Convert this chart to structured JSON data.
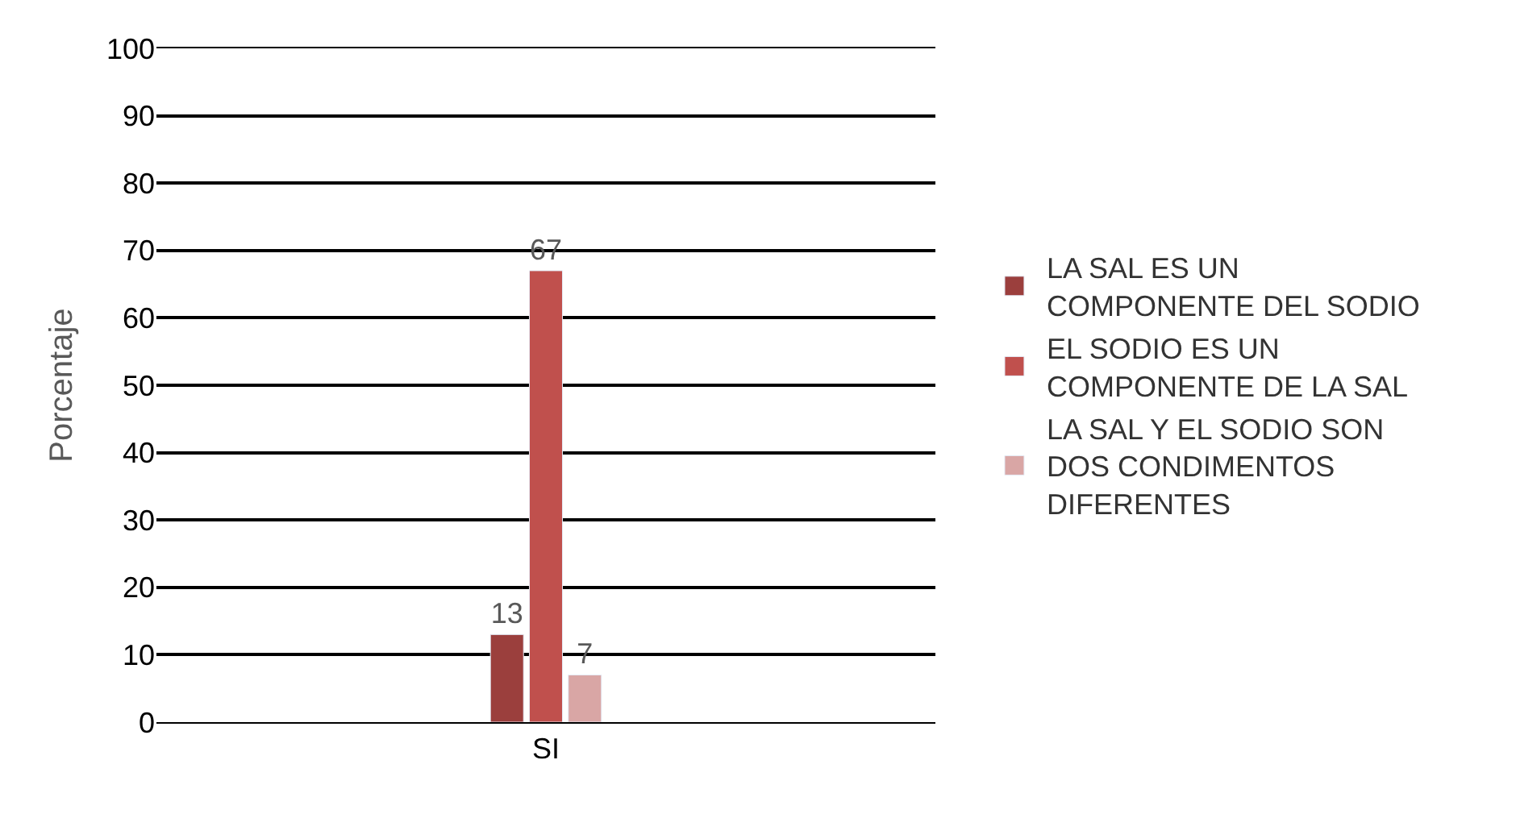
{
  "chart_data": {
    "type": "bar",
    "ylabel": "Porcentaje",
    "categories": [
      null,
      "SI",
      null
    ],
    "series": [
      {
        "name": "LA SAL ES UN COMPONENTE DEL SODIO",
        "color": "#9b3f3d",
        "values": [
          null,
          13,
          null
        ]
      },
      {
        "name": "EL SODIO ES UN COMPONENTE DE LA SAL",
        "color": "#c0504d",
        "values": [
          null,
          67,
          null
        ]
      },
      {
        "name": "LA SAL Y EL SODIO SON DOS CONDIMENTOS DIFERENTES",
        "color": "#d9a6a5",
        "values": [
          null,
          7,
          null
        ]
      }
    ],
    "ylim": [
      0,
      100
    ],
    "yticks": [
      0,
      10,
      20,
      30,
      40,
      50,
      60,
      70,
      80,
      90,
      100
    ],
    "grid": "y",
    "legend": "right",
    "data_labels": true
  }
}
